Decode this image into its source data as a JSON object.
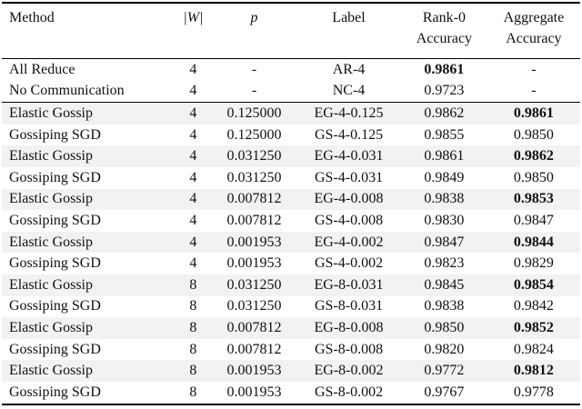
{
  "table": {
    "header": [
      [
        "Method"
      ],
      [
        "|W|"
      ],
      [
        "p"
      ],
      [
        "Label"
      ],
      [
        "Rank-0",
        "Accuracy"
      ],
      [
        "Aggregate",
        "Accuracy"
      ]
    ],
    "header_italic": [
      1,
      2
    ],
    "rows": [
      {
        "cells": [
          "All Reduce",
          "4",
          "-",
          "AR-4",
          "0.9861",
          "-"
        ],
        "bold": 4
      },
      {
        "cells": [
          "No Communication",
          "4",
          "-",
          "NC-4",
          "0.9723",
          "-"
        ]
      },
      {
        "cells": [
          "Elastic Gossip",
          "4",
          "0.125000",
          "EG-4-0.125",
          "0.9862",
          "0.9861"
        ],
        "bold": 5
      },
      {
        "cells": [
          "Gossiping SGD",
          "4",
          "0.125000",
          "GS-4-0.125",
          "0.9855",
          "0.9850"
        ]
      },
      {
        "cells": [
          "Elastic Gossip",
          "4",
          "0.031250",
          "EG-4-0.031",
          "0.9861",
          "0.9862"
        ],
        "bold": 5
      },
      {
        "cells": [
          "Gossiping SGD",
          "4",
          "0.031250",
          "GS-4-0.031",
          "0.9849",
          "0.9850"
        ]
      },
      {
        "cells": [
          "Elastic Gossip",
          "4",
          "0.007812",
          "EG-4-0.008",
          "0.9838",
          "0.9853"
        ],
        "bold": 5
      },
      {
        "cells": [
          "Gossiping SGD",
          "4",
          "0.007812",
          "GS-4-0.008",
          "0.9830",
          "0.9847"
        ]
      },
      {
        "cells": [
          "Elastic Gossip",
          "4",
          "0.001953",
          "EG-4-0.002",
          "0.9847",
          "0.9844"
        ],
        "bold": 5
      },
      {
        "cells": [
          "Gossiping SGD",
          "4",
          "0.001953",
          "GS-4-0.002",
          "0.9823",
          "0.9829"
        ]
      },
      {
        "cells": [
          "Elastic Gossip",
          "8",
          "0.031250",
          "EG-8-0.031",
          "0.9845",
          "0.9854"
        ],
        "bold": 5
      },
      {
        "cells": [
          "Gossiping SGD",
          "8",
          "0.031250",
          "GS-8-0.031",
          "0.9838",
          "0.9842"
        ]
      },
      {
        "cells": [
          "Elastic Gossip",
          "8",
          "0.007812",
          "EG-8-0.008",
          "0.9850",
          "0.9852"
        ],
        "bold": 5
      },
      {
        "cells": [
          "Gossiping SGD",
          "8",
          "0.007812",
          "GS-8-0.008",
          "0.9820",
          "0.9824"
        ]
      },
      {
        "cells": [
          "Elastic Gossip",
          "8",
          "0.001953",
          "EG-8-0.002",
          "0.9772",
          "0.9812"
        ],
        "bold": 5
      },
      {
        "cells": [
          "Gossiping SGD",
          "8",
          "0.001953",
          "GS-8-0.002",
          "0.9767",
          "0.9778"
        ]
      }
    ]
  }
}
